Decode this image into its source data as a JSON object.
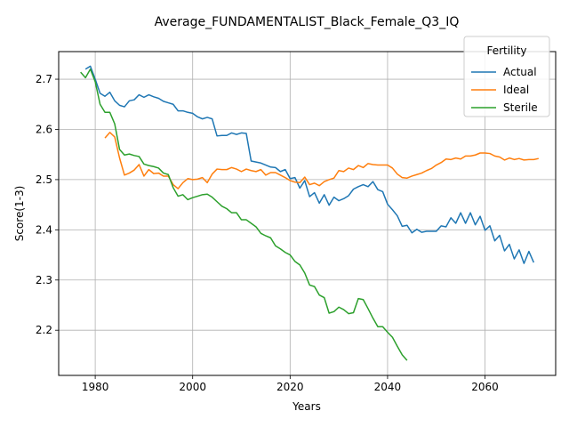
{
  "chart_data": {
    "type": "line",
    "title": "Average_FUNDAMENTALIST_Black_Female_Q3_IQ",
    "xlabel": "Years",
    "ylabel": "Score(1-3)",
    "xlim": [
      1972.5,
      2074.5
    ],
    "ylim": [
      2.11,
      2.755
    ],
    "x_ticks": [
      1980,
      2000,
      2020,
      2040,
      2060
    ],
    "x_tick_labels": [
      "1980",
      "2000",
      "2020",
      "2040",
      "2060"
    ],
    "y_ticks": [
      2.2,
      2.3,
      2.4,
      2.5,
      2.6,
      2.7
    ],
    "y_tick_labels": [
      "2.2",
      "2.3",
      "2.4",
      "2.5",
      "2.6",
      "2.7"
    ],
    "grid": true,
    "legend": {
      "title": "Fertility",
      "placement": "top-right"
    },
    "series": [
      {
        "name": "Actual",
        "color": "#1f77b4",
        "x_start": 1978,
        "values": [
          2.72,
          2.726,
          2.7,
          2.672,
          2.666,
          2.674,
          2.657,
          2.648,
          2.645,
          2.657,
          2.659,
          2.669,
          2.664,
          2.669,
          2.665,
          2.662,
          2.656,
          2.653,
          2.65,
          2.637,
          2.637,
          2.634,
          2.632,
          2.625,
          2.621,
          2.624,
          2.621,
          2.587,
          2.588,
          2.588,
          2.593,
          2.59,
          2.593,
          2.592,
          2.537,
          2.535,
          2.533,
          2.529,
          2.525,
          2.524,
          2.516,
          2.52,
          2.502,
          2.504,
          2.483,
          2.498,
          2.466,
          2.474,
          2.453,
          2.47,
          2.449,
          2.465,
          2.458,
          2.462,
          2.468,
          2.481,
          2.486,
          2.49,
          2.486,
          2.496,
          2.48,
          2.476,
          2.451,
          2.44,
          2.428,
          2.407,
          2.409,
          2.394,
          2.401,
          2.395,
          2.397,
          2.397,
          2.397,
          2.408,
          2.406,
          2.424,
          2.413,
          2.434,
          2.413,
          2.434,
          2.41,
          2.427,
          2.399,
          2.408,
          2.378,
          2.389,
          2.358,
          2.371,
          2.342,
          2.36,
          2.333,
          2.357,
          2.335
        ]
      },
      {
        "name": "Ideal",
        "color": "#ff7f0e",
        "x_start": 1982,
        "values": [
          2.583,
          2.594,
          2.585,
          2.543,
          2.509,
          2.513,
          2.519,
          2.53,
          2.507,
          2.52,
          2.512,
          2.513,
          2.507,
          2.507,
          2.49,
          2.482,
          2.494,
          2.502,
          2.5,
          2.501,
          2.504,
          2.494,
          2.511,
          2.521,
          2.52,
          2.52,
          2.524,
          2.521,
          2.516,
          2.521,
          2.518,
          2.516,
          2.52,
          2.509,
          2.514,
          2.514,
          2.509,
          2.504,
          2.498,
          2.495,
          2.494,
          2.505,
          2.49,
          2.493,
          2.488,
          2.496,
          2.5,
          2.503,
          2.518,
          2.516,
          2.523,
          2.52,
          2.528,
          2.524,
          2.532,
          2.53,
          2.529,
          2.529,
          2.529,
          2.523,
          2.511,
          2.504,
          2.503,
          2.507,
          2.51,
          2.513,
          2.518,
          2.522,
          2.529,
          2.534,
          2.541,
          2.54,
          2.543,
          2.541,
          2.547,
          2.547,
          2.549,
          2.553,
          2.553,
          2.552,
          2.547,
          2.545,
          2.539,
          2.543,
          2.54,
          2.542,
          2.539,
          2.54,
          2.54,
          2.542
        ]
      },
      {
        "name": "Sterile",
        "color": "#2ca02c",
        "x_start": 1977,
        "values": [
          2.714,
          2.703,
          2.72,
          2.695,
          2.65,
          2.634,
          2.634,
          2.611,
          2.56,
          2.549,
          2.551,
          2.548,
          2.546,
          2.531,
          2.528,
          2.526,
          2.523,
          2.513,
          2.51,
          2.484,
          2.467,
          2.47,
          2.46,
          2.464,
          2.467,
          2.47,
          2.471,
          2.465,
          2.456,
          2.447,
          2.442,
          2.434,
          2.434,
          2.42,
          2.42,
          2.413,
          2.406,
          2.393,
          2.388,
          2.384,
          2.368,
          2.362,
          2.355,
          2.35,
          2.337,
          2.33,
          2.314,
          2.29,
          2.287,
          2.27,
          2.265,
          2.234,
          2.237,
          2.246,
          2.241,
          2.233,
          2.235,
          2.263,
          2.261,
          2.243,
          2.224,
          2.207,
          2.207,
          2.196,
          2.186,
          2.168,
          2.151,
          2.14
        ]
      }
    ]
  }
}
